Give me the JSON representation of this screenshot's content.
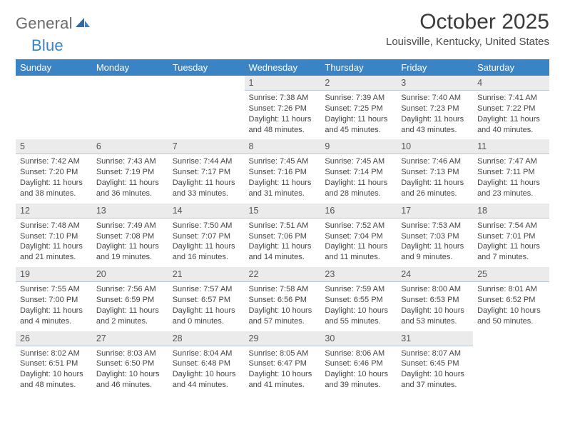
{
  "brand": {
    "name1": "General",
    "name2": "Blue"
  },
  "title": "October 2025",
  "location": "Louisville, Kentucky, United States",
  "headers": [
    "Sunday",
    "Monday",
    "Tuesday",
    "Wednesday",
    "Thursday",
    "Friday",
    "Saturday"
  ],
  "colors": {
    "header_bg": "#3a83c4",
    "header_fg": "#ffffff",
    "daynum_bg": "#ebebeb",
    "daynum_border": "#b9c7d6",
    "text": "#444444",
    "title": "#3b3b3b",
    "logo_gray": "#6b6b6b",
    "logo_blue": "#3a83c4"
  },
  "layout": {
    "cols": 7,
    "rows": 5,
    "cell_font_size": 11,
    "daynum_font_size": 12.5
  },
  "weeks": [
    [
      {
        "n": "",
        "l1": "",
        "l2": "",
        "l3": "",
        "l4": ""
      },
      {
        "n": "",
        "l1": "",
        "l2": "",
        "l3": "",
        "l4": ""
      },
      {
        "n": "",
        "l1": "",
        "l2": "",
        "l3": "",
        "l4": ""
      },
      {
        "n": "1",
        "l1": "Sunrise: 7:38 AM",
        "l2": "Sunset: 7:26 PM",
        "l3": "Daylight: 11 hours",
        "l4": "and 48 minutes."
      },
      {
        "n": "2",
        "l1": "Sunrise: 7:39 AM",
        "l2": "Sunset: 7:25 PM",
        "l3": "Daylight: 11 hours",
        "l4": "and 45 minutes."
      },
      {
        "n": "3",
        "l1": "Sunrise: 7:40 AM",
        "l2": "Sunset: 7:23 PM",
        "l3": "Daylight: 11 hours",
        "l4": "and 43 minutes."
      },
      {
        "n": "4",
        "l1": "Sunrise: 7:41 AM",
        "l2": "Sunset: 7:22 PM",
        "l3": "Daylight: 11 hours",
        "l4": "and 40 minutes."
      }
    ],
    [
      {
        "n": "5",
        "l1": "Sunrise: 7:42 AM",
        "l2": "Sunset: 7:20 PM",
        "l3": "Daylight: 11 hours",
        "l4": "and 38 minutes."
      },
      {
        "n": "6",
        "l1": "Sunrise: 7:43 AM",
        "l2": "Sunset: 7:19 PM",
        "l3": "Daylight: 11 hours",
        "l4": "and 36 minutes."
      },
      {
        "n": "7",
        "l1": "Sunrise: 7:44 AM",
        "l2": "Sunset: 7:17 PM",
        "l3": "Daylight: 11 hours",
        "l4": "and 33 minutes."
      },
      {
        "n": "8",
        "l1": "Sunrise: 7:45 AM",
        "l2": "Sunset: 7:16 PM",
        "l3": "Daylight: 11 hours",
        "l4": "and 31 minutes."
      },
      {
        "n": "9",
        "l1": "Sunrise: 7:45 AM",
        "l2": "Sunset: 7:14 PM",
        "l3": "Daylight: 11 hours",
        "l4": "and 28 minutes."
      },
      {
        "n": "10",
        "l1": "Sunrise: 7:46 AM",
        "l2": "Sunset: 7:13 PM",
        "l3": "Daylight: 11 hours",
        "l4": "and 26 minutes."
      },
      {
        "n": "11",
        "l1": "Sunrise: 7:47 AM",
        "l2": "Sunset: 7:11 PM",
        "l3": "Daylight: 11 hours",
        "l4": "and 23 minutes."
      }
    ],
    [
      {
        "n": "12",
        "l1": "Sunrise: 7:48 AM",
        "l2": "Sunset: 7:10 PM",
        "l3": "Daylight: 11 hours",
        "l4": "and 21 minutes."
      },
      {
        "n": "13",
        "l1": "Sunrise: 7:49 AM",
        "l2": "Sunset: 7:08 PM",
        "l3": "Daylight: 11 hours",
        "l4": "and 19 minutes."
      },
      {
        "n": "14",
        "l1": "Sunrise: 7:50 AM",
        "l2": "Sunset: 7:07 PM",
        "l3": "Daylight: 11 hours",
        "l4": "and 16 minutes."
      },
      {
        "n": "15",
        "l1": "Sunrise: 7:51 AM",
        "l2": "Sunset: 7:06 PM",
        "l3": "Daylight: 11 hours",
        "l4": "and 14 minutes."
      },
      {
        "n": "16",
        "l1": "Sunrise: 7:52 AM",
        "l2": "Sunset: 7:04 PM",
        "l3": "Daylight: 11 hours",
        "l4": "and 11 minutes."
      },
      {
        "n": "17",
        "l1": "Sunrise: 7:53 AM",
        "l2": "Sunset: 7:03 PM",
        "l3": "Daylight: 11 hours",
        "l4": "and 9 minutes."
      },
      {
        "n": "18",
        "l1": "Sunrise: 7:54 AM",
        "l2": "Sunset: 7:01 PM",
        "l3": "Daylight: 11 hours",
        "l4": "and 7 minutes."
      }
    ],
    [
      {
        "n": "19",
        "l1": "Sunrise: 7:55 AM",
        "l2": "Sunset: 7:00 PM",
        "l3": "Daylight: 11 hours",
        "l4": "and 4 minutes."
      },
      {
        "n": "20",
        "l1": "Sunrise: 7:56 AM",
        "l2": "Sunset: 6:59 PM",
        "l3": "Daylight: 11 hours",
        "l4": "and 2 minutes."
      },
      {
        "n": "21",
        "l1": "Sunrise: 7:57 AM",
        "l2": "Sunset: 6:57 PM",
        "l3": "Daylight: 11 hours",
        "l4": "and 0 minutes."
      },
      {
        "n": "22",
        "l1": "Sunrise: 7:58 AM",
        "l2": "Sunset: 6:56 PM",
        "l3": "Daylight: 10 hours",
        "l4": "and 57 minutes."
      },
      {
        "n": "23",
        "l1": "Sunrise: 7:59 AM",
        "l2": "Sunset: 6:55 PM",
        "l3": "Daylight: 10 hours",
        "l4": "and 55 minutes."
      },
      {
        "n": "24",
        "l1": "Sunrise: 8:00 AM",
        "l2": "Sunset: 6:53 PM",
        "l3": "Daylight: 10 hours",
        "l4": "and 53 minutes."
      },
      {
        "n": "25",
        "l1": "Sunrise: 8:01 AM",
        "l2": "Sunset: 6:52 PM",
        "l3": "Daylight: 10 hours",
        "l4": "and 50 minutes."
      }
    ],
    [
      {
        "n": "26",
        "l1": "Sunrise: 8:02 AM",
        "l2": "Sunset: 6:51 PM",
        "l3": "Daylight: 10 hours",
        "l4": "and 48 minutes."
      },
      {
        "n": "27",
        "l1": "Sunrise: 8:03 AM",
        "l2": "Sunset: 6:50 PM",
        "l3": "Daylight: 10 hours",
        "l4": "and 46 minutes."
      },
      {
        "n": "28",
        "l1": "Sunrise: 8:04 AM",
        "l2": "Sunset: 6:48 PM",
        "l3": "Daylight: 10 hours",
        "l4": "and 44 minutes."
      },
      {
        "n": "29",
        "l1": "Sunrise: 8:05 AM",
        "l2": "Sunset: 6:47 PM",
        "l3": "Daylight: 10 hours",
        "l4": "and 41 minutes."
      },
      {
        "n": "30",
        "l1": "Sunrise: 8:06 AM",
        "l2": "Sunset: 6:46 PM",
        "l3": "Daylight: 10 hours",
        "l4": "and 39 minutes."
      },
      {
        "n": "31",
        "l1": "Sunrise: 8:07 AM",
        "l2": "Sunset: 6:45 PM",
        "l3": "Daylight: 10 hours",
        "l4": "and 37 minutes."
      },
      {
        "n": "",
        "l1": "",
        "l2": "",
        "l3": "",
        "l4": ""
      }
    ]
  ]
}
